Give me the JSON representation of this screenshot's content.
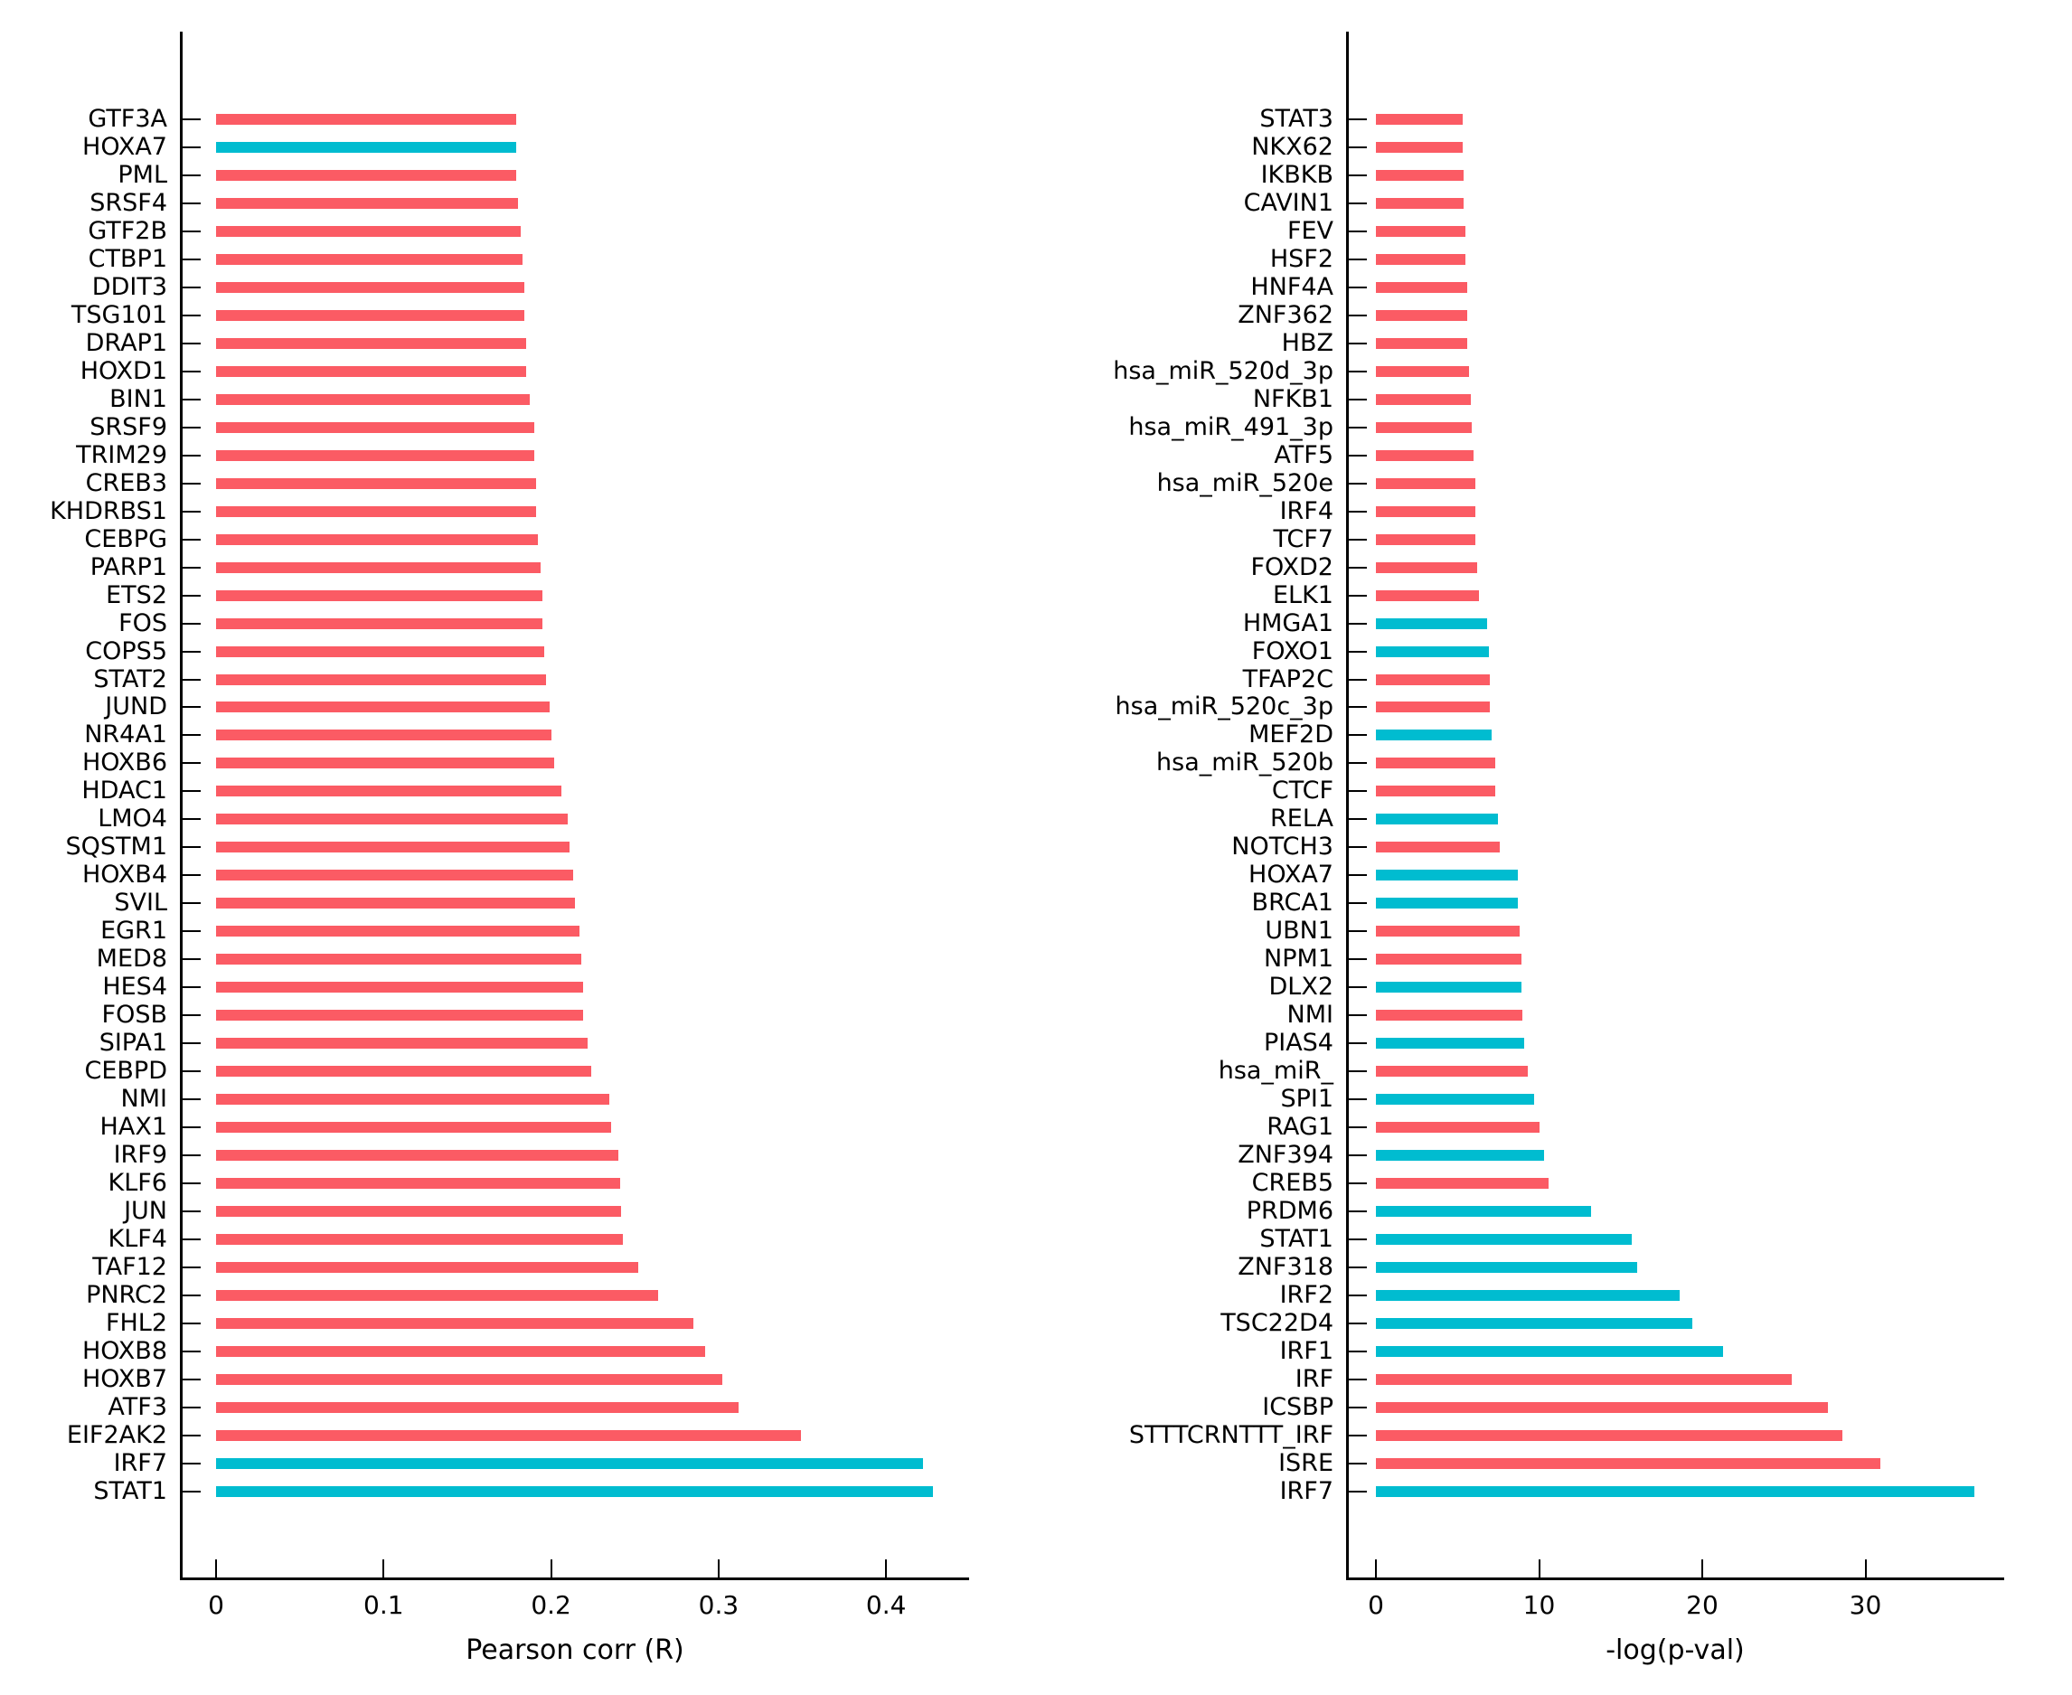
{
  "background": "#ffffff",
  "colors": {
    "red": "#fb5b64",
    "cyan": "#00bcd0"
  },
  "chart_data": [
    {
      "type": "bar",
      "orientation": "horizontal",
      "title": "",
      "xlabel": "Pearson corr (R)",
      "ylabel": "",
      "xticks": [
        0,
        0.1,
        0.2,
        0.3,
        0.4
      ],
      "xtick_labels": [
        "0",
        "0.1",
        "0.2",
        "0.3",
        "0.4"
      ],
      "xlim": [
        -0.0215,
        0.4495
      ],
      "grid": false,
      "legend": false,
      "order": "top-to-bottom",
      "categories": [
        "GTF3A",
        "HOXA7",
        "PML",
        "SRSF4",
        "GTF2B",
        "CTBP1",
        "DDIT3",
        "TSG101",
        "DRAP1",
        "HOXD1",
        "BIN1",
        "SRSF9",
        "TRIM29",
        "CREB3",
        "KHDRBS1",
        "CEBPG",
        "PARP1",
        "ETS2",
        "FOS",
        "COPS5",
        "STAT2",
        "JUND",
        "NR4A1",
        "HOXB6",
        "HDAC1",
        "LMO4",
        "SQSTM1",
        "HOXB4",
        "SVIL",
        "EGR1",
        "MED8",
        "HES4",
        "FOSB",
        "SIPA1",
        "CEBPD",
        "NMI",
        "HAX1",
        "IRF9",
        "KLF6",
        "JUN",
        "KLF4",
        "TAF12",
        "PNRC2",
        "FHL2",
        "HOXB8",
        "HOXB7",
        "ATF3",
        "EIF2AK2",
        "IRF7",
        "STAT1"
      ],
      "values": [
        0.179,
        0.179,
        0.179,
        0.18,
        0.182,
        0.183,
        0.184,
        0.184,
        0.185,
        0.185,
        0.187,
        0.19,
        0.19,
        0.191,
        0.191,
        0.192,
        0.194,
        0.195,
        0.195,
        0.196,
        0.197,
        0.199,
        0.2,
        0.202,
        0.206,
        0.21,
        0.211,
        0.213,
        0.214,
        0.217,
        0.218,
        0.219,
        0.219,
        0.222,
        0.224,
        0.235,
        0.236,
        0.24,
        0.241,
        0.242,
        0.243,
        0.252,
        0.264,
        0.285,
        0.292,
        0.302,
        0.312,
        0.349,
        0.422,
        0.428
      ],
      "bar_colors": [
        "red",
        "cyan",
        "red",
        "red",
        "red",
        "red",
        "red",
        "red",
        "red",
        "red",
        "red",
        "red",
        "red",
        "red",
        "red",
        "red",
        "red",
        "red",
        "red",
        "red",
        "red",
        "red",
        "red",
        "red",
        "red",
        "red",
        "red",
        "red",
        "red",
        "red",
        "red",
        "red",
        "red",
        "red",
        "red",
        "red",
        "red",
        "red",
        "red",
        "red",
        "red",
        "red",
        "red",
        "red",
        "red",
        "red",
        "red",
        "red",
        "cyan",
        "cyan"
      ]
    },
    {
      "type": "bar",
      "orientation": "horizontal",
      "title": "",
      "xlabel": "-log(p-val)",
      "ylabel": "",
      "xticks": [
        0,
        10,
        20,
        30
      ],
      "xtick_labels": [
        "0",
        "10",
        "20",
        "30"
      ],
      "xlim": [
        -1.85,
        38.5
      ],
      "grid": false,
      "legend": false,
      "order": "top-to-bottom",
      "categories": [
        "STAT3",
        "NKX62",
        "IKBKB",
        "CAVIN1",
        "FEV",
        "HSF2",
        "HNF4A",
        "ZNF362",
        "HBZ",
        "hsa_miR_520d_3p",
        "NFKB1",
        "hsa_miR_491_3p",
        "ATF5",
        "hsa_miR_520e",
        "IRF4",
        "TCF7",
        "FOXD2",
        "ELK1",
        "HMGA1",
        "FOXO1",
        "TFAP2C",
        "hsa_miR_520c_3p",
        "MEF2D",
        "hsa_miR_520b",
        "CTCF",
        "RELA",
        "NOTCH3",
        "HOXA7",
        "BRCA1",
        "UBN1",
        "NPM1",
        "DLX2",
        "NMI",
        "PIAS4",
        "hsa_miR_",
        "SPI1",
        "RAG1",
        "ZNF394",
        "CREB5",
        "PRDM6",
        "STAT1",
        "ZNF318",
        "IRF2",
        "TSC22D4",
        "IRF1",
        "IRF",
        "ICSBP",
        "STTTCRNTTT_IRF",
        "ISRE",
        "IRF7"
      ],
      "values": [
        5.3,
        5.3,
        5.4,
        5.4,
        5.5,
        5.5,
        5.6,
        5.6,
        5.6,
        5.7,
        5.8,
        5.9,
        6.0,
        6.1,
        6.1,
        6.1,
        6.2,
        6.3,
        6.8,
        6.9,
        7.0,
        7.0,
        7.1,
        7.3,
        7.3,
        7.5,
        7.6,
        8.7,
        8.7,
        8.8,
        8.9,
        8.9,
        9.0,
        9.1,
        9.3,
        9.7,
        10.0,
        10.3,
        10.6,
        13.2,
        15.7,
        16.0,
        18.6,
        19.4,
        21.3,
        25.5,
        27.7,
        28.6,
        30.9,
        36.7
      ],
      "bar_colors": [
        "red",
        "red",
        "red",
        "red",
        "red",
        "red",
        "red",
        "red",
        "red",
        "red",
        "red",
        "red",
        "red",
        "red",
        "red",
        "red",
        "red",
        "red",
        "cyan",
        "cyan",
        "red",
        "red",
        "cyan",
        "red",
        "red",
        "cyan",
        "red",
        "cyan",
        "cyan",
        "red",
        "red",
        "cyan",
        "red",
        "cyan",
        "red",
        "cyan",
        "red",
        "cyan",
        "red",
        "cyan",
        "cyan",
        "cyan",
        "cyan",
        "cyan",
        "cyan",
        "red",
        "red",
        "red",
        "red",
        "cyan"
      ]
    }
  ]
}
